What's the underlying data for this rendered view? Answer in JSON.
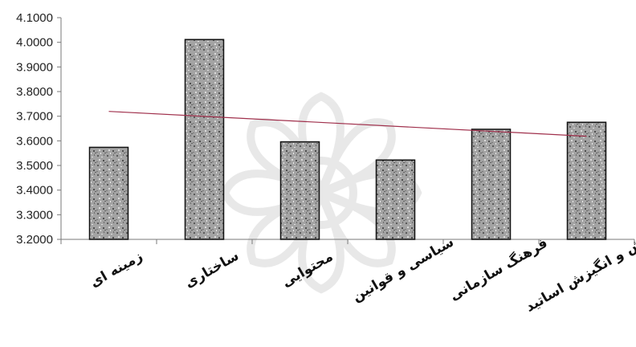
{
  "chart_data": {
    "type": "bar",
    "categories": [
      "زمینه ای",
      "ساختاری",
      "محتوایی",
      "سیاسی و قوانین",
      "فرهنگ سازمانی",
      "نگرش و انگیزش اساتید"
    ],
    "values": [
      3.5736,
      4.0112,
      3.5959,
      3.5221,
      3.6469,
      3.6753
    ],
    "yticks": [
      "3.2000",
      "3.3000",
      "3.4000",
      "3.5000",
      "3.6000",
      "3.7000",
      "3.8000",
      "3.9000",
      "4.0000",
      "4.1000"
    ],
    "ylim": [
      3.2,
      4.1
    ],
    "trendline": {
      "start": 3.7195,
      "end": 3.6186
    },
    "grid": false,
    "legend": "none",
    "colors": {
      "bar_pattern": "#9a9a9a",
      "trend": "#a0304c",
      "axis": "#7a7a7a"
    }
  }
}
